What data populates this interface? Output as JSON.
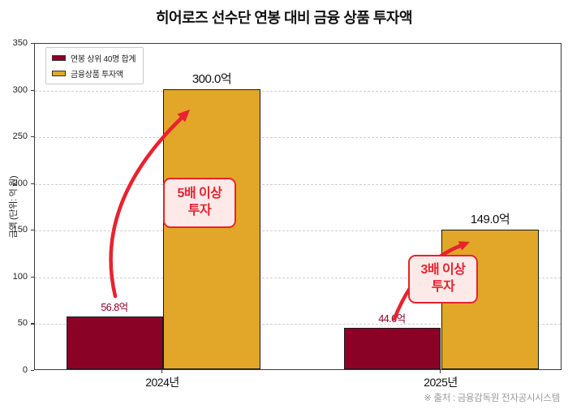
{
  "title": "히어로즈 선수단 연봉 대비 금융 상품 투자액",
  "source_note": "※ 출처 : 금융감독원 전자공시시스템",
  "colors": {
    "bar_salary": "#8b0227",
    "bar_invest": "#e2a629",
    "accent_red": "#e8222f",
    "callout_bg": "#fdeae8",
    "grid": "#cfcfcf",
    "source_gray": "#9a9a9a"
  },
  "chart_data": {
    "type": "bar",
    "title": "히어로즈 선수단 연봉 대비 금융 상품 투자액",
    "categories": [
      "2024년",
      "2025년"
    ],
    "series": [
      {
        "name": "연봉 상위 40명 합계",
        "color": "#8b0227",
        "label_color": "#8b0227",
        "values": [
          56.8,
          44.0
        ],
        "labels": [
          "56.8억",
          "44.0억"
        ]
      },
      {
        "name": "금융상품 투자액",
        "color": "#e2a629",
        "label_color": "#111111",
        "values": [
          300.0,
          149.0
        ],
        "labels": [
          "300.0억",
          "149.0억"
        ]
      }
    ],
    "xlabel": "",
    "ylabel": "금액 (단위: 억 원)",
    "ylim": [
      0,
      350
    ],
    "yticks": [
      0,
      50,
      100,
      150,
      200,
      250,
      300,
      350
    ],
    "grid": "horizontal-dashed",
    "legend_position": "upper-left",
    "annotations": [
      {
        "text": "5배 이상\n투자",
        "target": "2024년 금융상품 투자액",
        "arrow": "curved-up-right"
      },
      {
        "text": "3배 이상\n투자",
        "target": "2025년 금융상품 투자액",
        "arrow": "up-right"
      }
    ]
  }
}
